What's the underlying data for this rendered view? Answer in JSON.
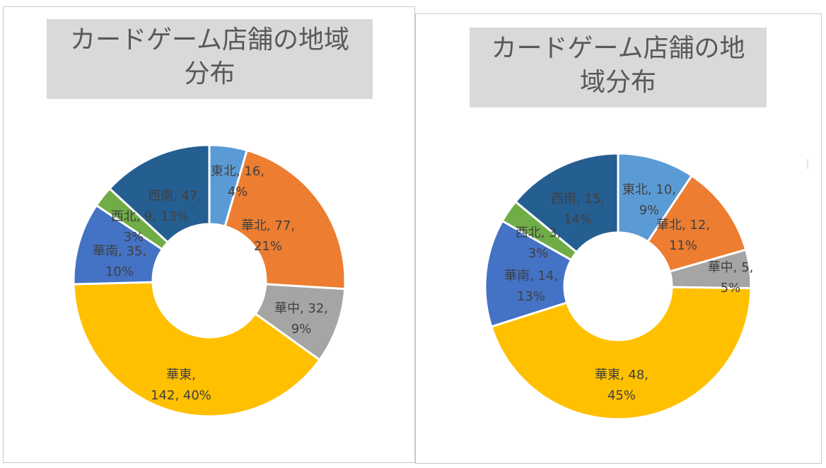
{
  "colors": {
    "東北": "#5b9bd5",
    "華北": "#ed7d31",
    "華中": "#a5a5a5",
    "華東": "#ffc000",
    "華南": "#4472c4",
    "西北": "#70ad47",
    "西南": "#255e91"
  },
  "chart_data": [
    {
      "type": "pie",
      "variant": "doughnut",
      "title_lines": [
        "カードゲーム店舗の地域",
        "分布"
      ],
      "categories": [
        "東北",
        "華北",
        "華中",
        "華東",
        "華南",
        "西北",
        "西南"
      ],
      "values": [
        16,
        77,
        32,
        142,
        35,
        9,
        47
      ],
      "percents": [
        "4%",
        "21%",
        "9%",
        "40%",
        "10%",
        "3%",
        "13%"
      ],
      "data_labels": [
        [
          "東北, 16,",
          "4%"
        ],
        [
          "華北, 77,",
          "21%"
        ],
        [
          "華中, 32,",
          "9%"
        ],
        [
          "華東,",
          "142, 40%"
        ],
        [
          "華南, 35,",
          "10%"
        ],
        [
          "西北, 9,",
          "3%"
        ],
        [
          "西南, 47,",
          "13%"
        ]
      ],
      "legend": "none"
    },
    {
      "type": "pie",
      "variant": "doughnut",
      "title_lines": [
        "カードゲーム店舗の地",
        "域分布"
      ],
      "categories": [
        "東北",
        "華北",
        "華中",
        "華東",
        "華南",
        "西北",
        "西南"
      ],
      "values": [
        10,
        12,
        5,
        48,
        14,
        3,
        15
      ],
      "percents": [
        "9%",
        "11%",
        "5%",
        "45%",
        "13%",
        "3%",
        "14%"
      ],
      "data_labels": [
        [
          "東北, 10,",
          "9%"
        ],
        [
          "華北, 12,",
          "11%"
        ],
        [
          "華中, 5,",
          "5%"
        ],
        [
          "華東, 48,",
          "45%"
        ],
        [
          "華南, 14,",
          "13%"
        ],
        [
          "西北, 3,",
          "3%"
        ],
        [
          "西南, 15,",
          "14%"
        ]
      ],
      "legend": "none"
    }
  ]
}
